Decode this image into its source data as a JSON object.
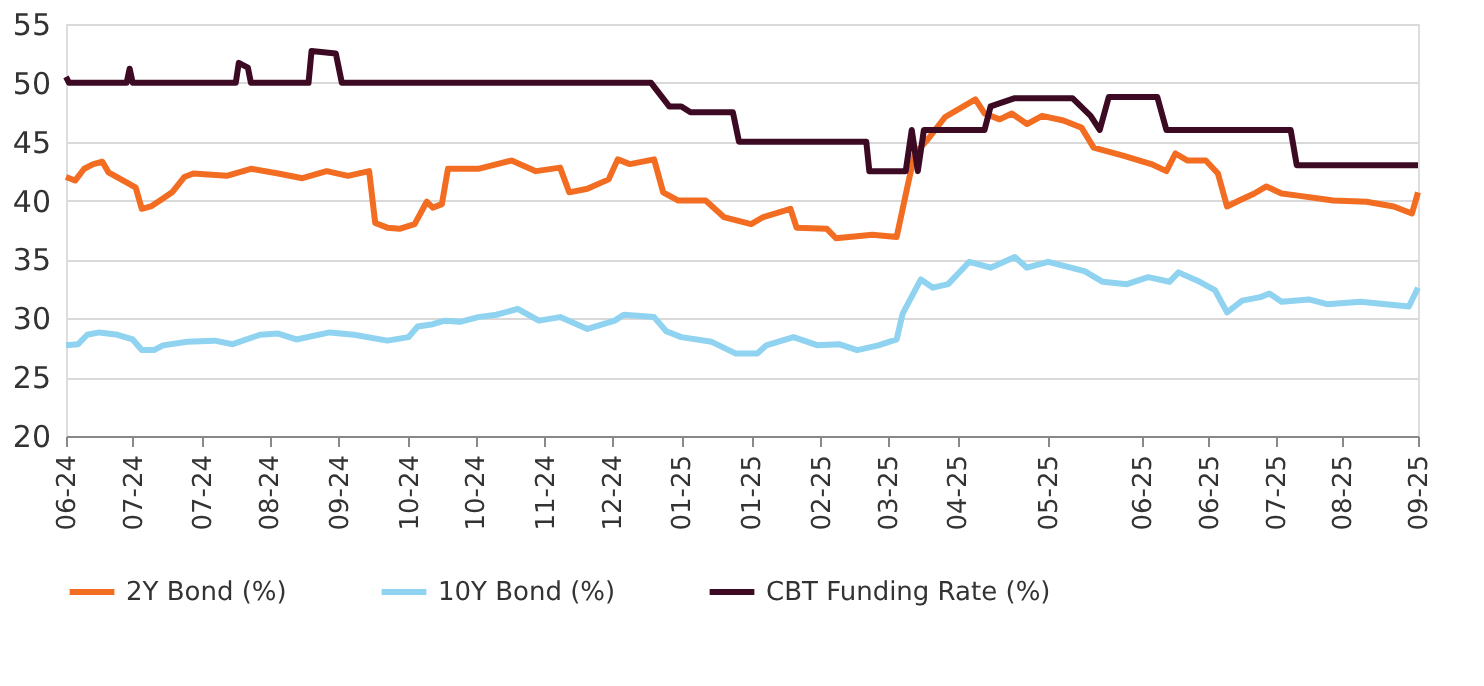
{
  "chart_data": {
    "type": "line",
    "xlim": [
      "2024-06-12",
      "2025-09-01"
    ],
    "xticks": [
      {
        "value": "2024-06-12",
        "label": "06-24"
      },
      {
        "value": "2024-07-04",
        "label": "07-24"
      },
      {
        "value": "2024-07-27",
        "label": "07-24"
      },
      {
        "value": "2024-08-18",
        "label": "08-24"
      },
      {
        "value": "2024-09-10",
        "label": "09-24"
      },
      {
        "value": "2024-10-03",
        "label": "10-24"
      },
      {
        "value": "2024-10-25",
        "label": "10-24"
      },
      {
        "value": "2024-11-17",
        "label": "11-24"
      },
      {
        "value": "2024-12-09",
        "label": "12-24"
      },
      {
        "value": "2025-01-01",
        "label": "01-25"
      },
      {
        "value": "2025-01-24",
        "label": "01-25"
      },
      {
        "value": "2025-02-16",
        "label": "02-25"
      },
      {
        "value": "2025-03-10",
        "label": "03-25"
      },
      {
        "value": "2025-04-02",
        "label": "04-25"
      },
      {
        "value": "2025-05-02",
        "label": "05-25"
      },
      {
        "value": "2025-06-02",
        "label": "06-25"
      },
      {
        "value": "2025-06-24",
        "label": "06-25"
      },
      {
        "value": "2025-07-16",
        "label": "07-25"
      },
      {
        "value": "2025-08-07",
        "label": "08-25"
      },
      {
        "value": "2025-09-01",
        "label": "09-25"
      }
    ],
    "ylim": [
      20,
      55
    ],
    "yticks": [
      20,
      25,
      30,
      35,
      40,
      45,
      50,
      55
    ],
    "grid": "y",
    "legend": "bottom",
    "marker": "none",
    "line_style": "solid",
    "series": [
      {
        "name": "2Y Bond (%)",
        "color": "#f26d21",
        "x": [
          "2024-06-12",
          "2024-06-15",
          "2024-06-18",
          "2024-06-21",
          "2024-06-24",
          "2024-06-26",
          "2024-07-03",
          "2024-07-05",
          "2024-07-07",
          "2024-07-10",
          "2024-07-13",
          "2024-07-17",
          "2024-07-21",
          "2024-07-24",
          "2024-08-04",
          "2024-08-12",
          "2024-08-21",
          "2024-08-29",
          "2024-09-06",
          "2024-09-13",
          "2024-09-20",
          "2024-09-22",
          "2024-09-26",
          "2024-09-30",
          "2024-10-05",
          "2024-10-09",
          "2024-10-11",
          "2024-10-14",
          "2024-10-16",
          "2024-10-26",
          "2024-11-06",
          "2024-11-14",
          "2024-11-22",
          "2024-11-25",
          "2024-12-01",
          "2024-12-08",
          "2024-12-11",
          "2024-12-15",
          "2024-12-23",
          "2024-12-26",
          "2024-12-31",
          "2025-01-09",
          "2025-01-15",
          "2025-01-24",
          "2025-01-28",
          "2025-02-06",
          "2025-02-08",
          "2025-02-18",
          "2025-02-21",
          "2025-03-05",
          "2025-03-13",
          "2025-03-17",
          "2025-03-19",
          "2025-03-23",
          "2025-03-29",
          "2025-04-08",
          "2025-04-11",
          "2025-04-16",
          "2025-04-20",
          "2025-04-25",
          "2025-04-30",
          "2025-05-07",
          "2025-05-13",
          "2025-05-17",
          "2025-05-27",
          "2025-06-05",
          "2025-06-10",
          "2025-06-13",
          "2025-06-17",
          "2025-06-23",
          "2025-06-27",
          "2025-06-30",
          "2025-07-04",
          "2025-07-09",
          "2025-07-13",
          "2025-07-18",
          "2025-07-24",
          "2025-08-04",
          "2025-08-15",
          "2025-08-24",
          "2025-08-30",
          "2025-09-01"
        ],
        "values": [
          42,
          41.7,
          42.7,
          43.1,
          43.3,
          42.4,
          41.4,
          41.1,
          39.3,
          39.5,
          40,
          40.7,
          42,
          42.3,
          42.1,
          42.7,
          42.3,
          41.9,
          42.5,
          42.1,
          42.5,
          38.1,
          37.7,
          37.6,
          38,
          39.9,
          39.4,
          39.7,
          42.7,
          42.7,
          43.4,
          42.5,
          42.8,
          40.7,
          41,
          41.8,
          43.5,
          43.1,
          43.5,
          40.7,
          40,
          40,
          38.6,
          38,
          38.6,
          39.3,
          37.7,
          37.6,
          36.8,
          37.1,
          36.9,
          41.7,
          44,
          45.1,
          47.1,
          48.6,
          47.4,
          46.9,
          47.4,
          46.5,
          47.2,
          46.8,
          46.2,
          44.5,
          43.8,
          43.1,
          42.5,
          44,
          43.4,
          43.4,
          42.3,
          39.5,
          40,
          40.6,
          41.2,
          40.6,
          40.4,
          40,
          39.9,
          39.5,
          38.9,
          40.7
        ]
      },
      {
        "name": "10Y Bond (%)",
        "color": "#8fd3f0",
        "x": [
          "2024-06-12",
          "2024-06-16",
          "2024-06-19",
          "2024-06-23",
          "2024-06-29",
          "2024-07-04",
          "2024-07-07",
          "2024-07-11",
          "2024-07-14",
          "2024-07-22",
          "2024-07-31",
          "2024-08-06",
          "2024-08-15",
          "2024-08-21",
          "2024-08-27",
          "2024-09-07",
          "2024-09-15",
          "2024-09-26",
          "2024-10-03",
          "2024-10-06",
          "2024-10-11",
          "2024-10-15",
          "2024-10-20",
          "2024-10-26",
          "2024-11-01",
          "2024-11-08",
          "2024-11-15",
          "2024-11-22",
          "2024-12-01",
          "2024-12-10",
          "2024-12-13",
          "2024-12-23",
          "2024-12-27",
          "2025-01-01",
          "2025-01-11",
          "2025-01-19",
          "2025-01-26",
          "2025-01-29",
          "2025-02-07",
          "2025-02-15",
          "2025-02-22",
          "2025-02-28",
          "2025-03-07",
          "2025-03-13",
          "2025-03-15",
          "2025-03-21",
          "2025-03-25",
          "2025-03-30",
          "2025-04-06",
          "2025-04-13",
          "2025-04-21",
          "2025-04-25",
          "2025-05-02",
          "2025-05-14",
          "2025-05-20",
          "2025-05-28",
          "2025-06-04",
          "2025-06-11",
          "2025-06-14",
          "2025-06-21",
          "2025-06-26",
          "2025-06-30",
          "2025-07-05",
          "2025-07-11",
          "2025-07-14",
          "2025-07-18",
          "2025-07-27",
          "2025-08-02",
          "2025-08-13",
          "2025-08-29",
          "2025-09-01"
        ],
        "values": [
          27.7,
          27.8,
          28.6,
          28.8,
          28.6,
          28.2,
          27.3,
          27.3,
          27.7,
          28,
          28.1,
          27.8,
          28.6,
          28.7,
          28.2,
          28.8,
          28.6,
          28.1,
          28.4,
          29.3,
          29.5,
          29.8,
          29.7,
          30.1,
          30.3,
          30.8,
          29.8,
          30.1,
          29.1,
          29.8,
          30.3,
          30.1,
          28.9,
          28.4,
          28,
          27,
          27,
          27.7,
          28.4,
          27.7,
          27.8,
          27.3,
          27.7,
          28.2,
          30.4,
          33.3,
          32.6,
          32.9,
          34.8,
          34.3,
          35.2,
          34.3,
          34.8,
          34,
          33.1,
          32.9,
          33.5,
          33.1,
          33.9,
          33.1,
          32.4,
          30.5,
          31.5,
          31.8,
          32.1,
          31.4,
          31.6,
          31.2,
          31.4,
          31,
          32.6
        ]
      },
      {
        "name": "CBT Funding Rate (%)",
        "color": "#3d0a24",
        "x": [
          "2024-06-12",
          "2024-06-13",
          "2024-07-02",
          "2024-07-03",
          "2024-07-04",
          "2024-08-07",
          "2024-08-08",
          "2024-08-11",
          "2024-08-12",
          "2024-08-31",
          "2024-09-01",
          "2024-09-09",
          "2024-09-11",
          "2024-12-22",
          "2024-12-28",
          "2025-01-01",
          "2025-01-04",
          "2025-01-18",
          "2025-01-20",
          "2025-03-03",
          "2025-03-04",
          "2025-03-16",
          "2025-03-18",
          "2025-03-20",
          "2025-03-22",
          "2025-04-11",
          "2025-04-13",
          "2025-04-21",
          "2025-05-10",
          "2025-05-16",
          "2025-05-19",
          "2025-05-22",
          "2025-06-07",
          "2025-06-10",
          "2025-07-21",
          "2025-07-23",
          "2025-09-01"
        ],
        "values": [
          50.5,
          50,
          50,
          51.2,
          50,
          50,
          51.7,
          51.3,
          50,
          50,
          52.7,
          52.5,
          50,
          50,
          48,
          48,
          47.5,
          47.5,
          45,
          45,
          42.5,
          42.5,
          46,
          42.5,
          46,
          46,
          48,
          48.7,
          48.7,
          47.2,
          46,
          48.8,
          48.8,
          46,
          46,
          43,
          43
        ]
      }
    ]
  }
}
